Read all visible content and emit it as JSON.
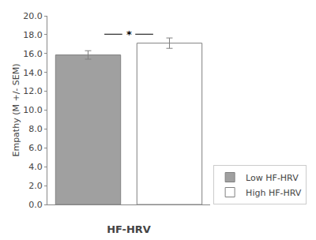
{
  "chart_data": {
    "type": "bar",
    "categories": [
      "Low HF-HRV",
      "High HF-HRV"
    ],
    "values": [
      15.85,
      17.1
    ],
    "errors": [
      0.45,
      0.55
    ],
    "colors": [
      "#a0a0a0",
      "#ffffff"
    ],
    "xlabel": "HF-HRV",
    "ylabel": "Empathy (M +/- SEM)",
    "ylim": [
      0.0,
      20.0
    ],
    "yticks": [
      {
        "value": 0,
        "label": "0.0"
      },
      {
        "value": 2,
        "label": "2.0"
      },
      {
        "value": 4,
        "label": "4.0"
      },
      {
        "value": 6,
        "label": "6.0"
      },
      {
        "value": 8,
        "label": "8.0"
      },
      {
        "value": 10,
        "label": "10.0"
      },
      {
        "value": 12,
        "label": "12.0"
      },
      {
        "value": 14,
        "label": "14.0"
      },
      {
        "value": 16,
        "label": "16.0"
      },
      {
        "value": 18,
        "label": "18.0"
      },
      {
        "value": 20,
        "label": "20.0"
      }
    ],
    "annotations": [
      {
        "text": "*",
        "y": 18.05
      }
    ],
    "legend": "lower right",
    "tick_labels": "y",
    "grid": false
  }
}
